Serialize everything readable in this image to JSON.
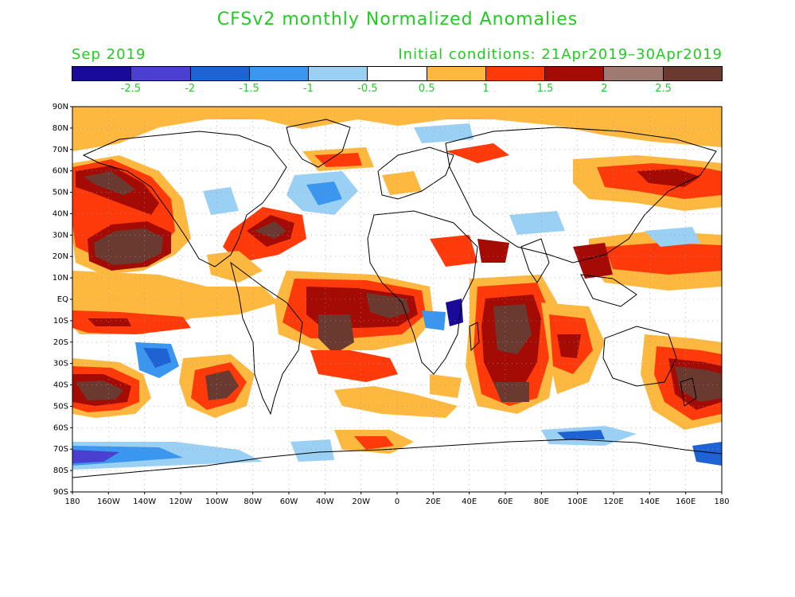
{
  "title": "CFSv2 monthly Normalized Anomalies",
  "valid_month": "Sep 2019",
  "initial_conditions": "Initial conditions: 21Apr2019–30Apr2019",
  "colorbar": {
    "colors": [
      "#1a0a9a",
      "#4a3fd0",
      "#1e62d4",
      "#3a96ee",
      "#9bd0f5",
      "#ffffff",
      "#fdb840",
      "#ff3a0a",
      "#a50b05",
      "#a07a70",
      "#6a3a30"
    ],
    "labels": [
      "-2.5",
      "-2",
      "-1.5",
      "-1",
      "-0.5",
      "0.5",
      "1",
      "1.5",
      "2",
      "2.5"
    ]
  },
  "axes": {
    "lat_labels": [
      "90N",
      "80N",
      "70N",
      "60N",
      "50N",
      "40N",
      "30N",
      "20N",
      "10N",
      "EQ",
      "10S",
      "20S",
      "30S",
      "40S",
      "50S",
      "60S",
      "70S",
      "80S",
      "90S"
    ],
    "lon_labels": [
      "180",
      "160W",
      "140W",
      "120W",
      "100W",
      "80W",
      "60W",
      "40W",
      "20W",
      "0",
      "20E",
      "40E",
      "60E",
      "80E",
      "100E",
      "120E",
      "140E",
      "160E",
      "180"
    ]
  }
}
